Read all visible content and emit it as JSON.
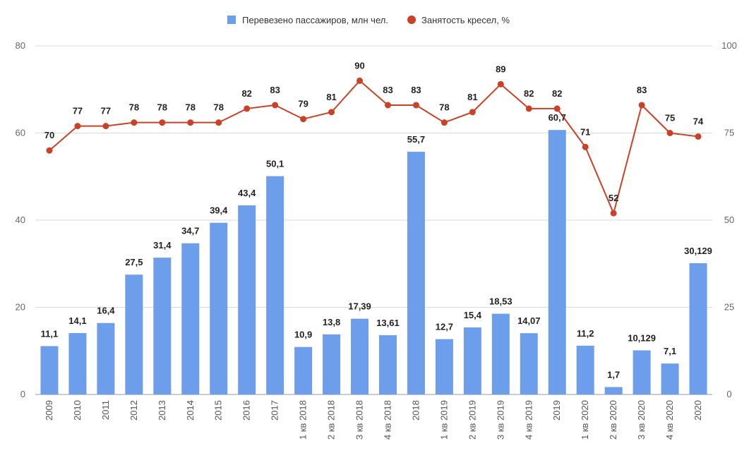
{
  "chart_data": {
    "type": "bar",
    "categories": [
      "2009",
      "2010",
      "2011",
      "2012",
      "2013",
      "2014",
      "2015",
      "2016",
      "2017",
      "1 кв 2018",
      "2 кв 2018",
      "3 кв 2018",
      "4 кв 2018",
      "2018",
      "1 кв 2019",
      "2 кв 2019",
      "3 кв 2019",
      "4 кв 2019",
      "2019",
      "1 кв 2020",
      "2 кв 2020",
      "3 кв 2020",
      "4 кв 2020",
      "2020"
    ],
    "series": [
      {
        "name": "Перевезено пассажиров, млн чел.",
        "type": "bar",
        "axis": "left",
        "color": "#6d9eeb",
        "values": [
          11.1,
          14.1,
          16.4,
          27.5,
          31.4,
          34.7,
          39.4,
          43.4,
          50.1,
          10.9,
          13.8,
          17.39,
          13.61,
          55.7,
          12.7,
          15.4,
          18.53,
          14.07,
          60.7,
          11.2,
          1.7,
          10.129,
          7.1,
          30.129
        ],
        "labels": [
          "11,1",
          "14,1",
          "16,4",
          "27,5",
          "31,4",
          "34,7",
          "39,4",
          "43,4",
          "50,1",
          "10,9",
          "13,8",
          "17,39",
          "13,61",
          "55,7",
          "12,7",
          "15,4",
          "18,53",
          "14,07",
          "60,7",
          "11,2",
          "1,7",
          "10,129",
          "7,1",
          "30,129"
        ]
      },
      {
        "name": "Занятость кресел, %",
        "type": "line",
        "axis": "right",
        "color": "#cc4125",
        "values": [
          70,
          77,
          77,
          78,
          78,
          78,
          78,
          82,
          83,
          79,
          81,
          90,
          83,
          83,
          78,
          81,
          89,
          82,
          82,
          71,
          52,
          83,
          75,
          74
        ],
        "labels": [
          "70",
          "77",
          "77",
          "78",
          "78",
          "78",
          "78",
          "82",
          "83",
          "79",
          "81",
          "90",
          "83",
          "83",
          "78",
          "81",
          "89",
          "82",
          "82",
          "71",
          "52",
          "83",
          "75",
          "74"
        ]
      }
    ],
    "yleft": {
      "min": 0,
      "max": 80,
      "ticks": [
        "0",
        "20",
        "40",
        "60",
        "80"
      ]
    },
    "yright": {
      "min": 0,
      "max": 100,
      "ticks": [
        "0",
        "25",
        "50",
        "75",
        "100"
      ]
    },
    "grid": true,
    "legend": "top-center",
    "colors": {
      "grid": "#d9d9d9",
      "axis": "#999999",
      "ticks": "#666666"
    }
  }
}
